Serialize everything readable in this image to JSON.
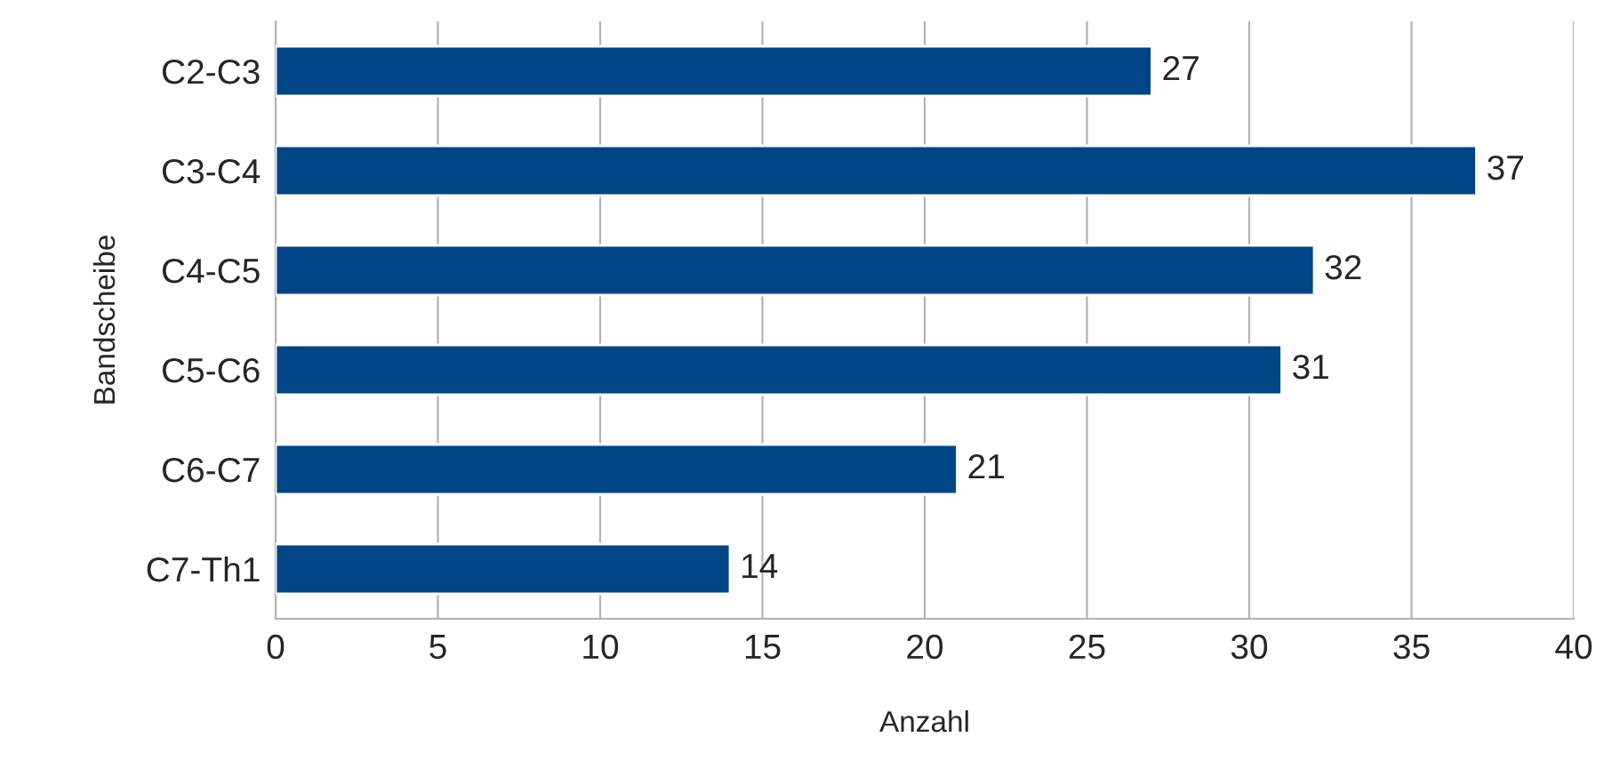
{
  "chart_data": {
    "type": "bar",
    "orientation": "horizontal",
    "xlabel": "Anzahl",
    "ylabel": "Bandscheibe",
    "categories": [
      "C2-C3",
      "C3-C4",
      "C4-C5",
      "C5-C6",
      "C6-C7",
      "C7-Th1"
    ],
    "values": [
      27,
      37,
      32,
      31,
      21,
      14
    ],
    "color": "#004586",
    "xlim": [
      0,
      40
    ],
    "xticks": [
      0,
      5,
      10,
      15,
      20,
      25,
      30,
      35,
      40
    ],
    "grid": "x",
    "data_labels": true
  }
}
